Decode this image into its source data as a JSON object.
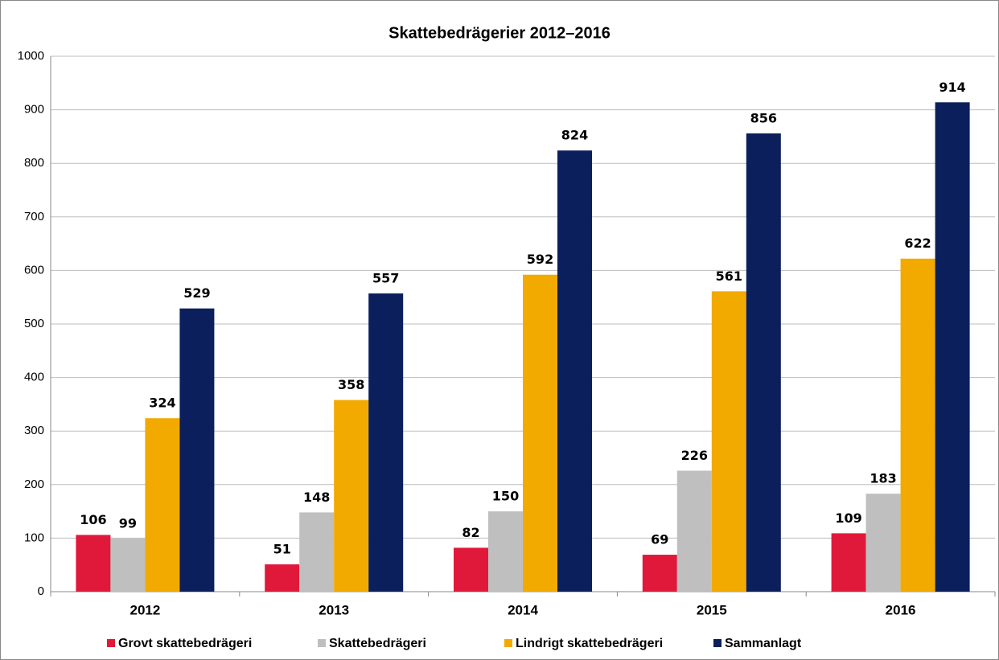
{
  "chart_data": {
    "type": "bar",
    "title": "Skattebedrägerier 2012–2016",
    "categories": [
      "2012",
      "2013",
      "2014",
      "2015",
      "2016"
    ],
    "series": [
      {
        "name": "Grovt skattebedrägeri",
        "color": "#e0193a",
        "values": [
          106,
          51,
          82,
          69,
          109
        ]
      },
      {
        "name": "Skattebedrägeri",
        "color": "#bfbfbf",
        "values": [
          99,
          148,
          150,
          226,
          183
        ]
      },
      {
        "name": "Lindrigt skattebedrägeri",
        "color": "#f2a900",
        "values": [
          324,
          358,
          592,
          561,
          622
        ]
      },
      {
        "name": "Sammanlagt",
        "color": "#0b1f5c",
        "values": [
          529,
          557,
          824,
          856,
          914
        ]
      }
    ],
    "ylim": [
      0,
      1000
    ],
    "yticks": [
      0,
      100,
      200,
      300,
      400,
      500,
      600,
      700,
      800,
      900,
      1000
    ],
    "grid": true,
    "legend": "bottom"
  }
}
